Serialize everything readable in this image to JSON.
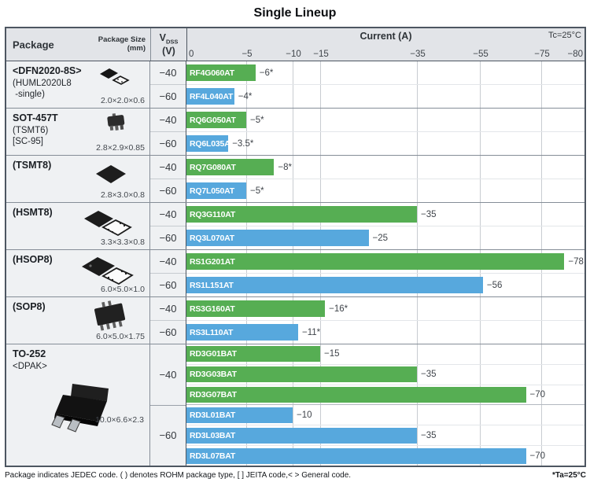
{
  "title": "Single Lineup",
  "header": {
    "package": "Package",
    "package_size_line1": "Package Size",
    "package_size_line2": "(mm)",
    "vdss_symbol": "V",
    "vdss_subscript": "DSS",
    "vdss_unit": "(V)",
    "current": "Current (A)",
    "tc": "Tc=25°C"
  },
  "footer": {
    "left": "Package indicates JEDEC code. ( ) denotes ROHM package type, [ ] JEITA code,< > General code.",
    "right": "*Ta=25°C"
  },
  "colors": {
    "green": "#56ae53",
    "blue": "#57a8dd",
    "header_bg": "#e2e4e8",
    "panel_bg": "#eff1f3",
    "border_dark": "#4d5661",
    "border_mid": "#858d97",
    "grid": "#c8ccd1"
  },
  "chart_data": {
    "type": "bar",
    "title": "Single Lineup",
    "xlabel": "Current (A)",
    "condition_top": "Tc=25°C",
    "condition_asterisk": "*Ta=25°C",
    "axis_scale": "nonlinear-compressed",
    "x_tick_labels": [
      "0",
      "−5",
      "−10",
      "−15",
      "−35",
      "−55",
      "−75",
      "−80"
    ],
    "x_tick_values": [
      0,
      5,
      10,
      15,
      35,
      55,
      75,
      80
    ],
    "legend": {
      "green_bars": "VDSS −40 V",
      "blue_bars": "VDSS −60 V"
    },
    "groups": [
      {
        "package": "<DFN2020-8S>",
        "package_sub": [
          "(HUML2020L8",
          " -single)"
        ],
        "package_size_mm": "2.0×2.0×0.6",
        "icon": "dfn-package-icon",
        "rows": [
          {
            "vdss": "−40",
            "bars": [
              {
                "part": "RF4G060AT",
                "current_a": -6,
                "label": "−6*",
                "color": "green"
              }
            ]
          },
          {
            "vdss": "−60",
            "bars": [
              {
                "part": "RF4L040AT",
                "current_a": -4,
                "label": "−4*",
                "color": "blue"
              }
            ]
          }
        ]
      },
      {
        "package": "SOT-457T",
        "package_sub": [
          "(TSMT6)",
          "[SC-95]"
        ],
        "package_size_mm": "2.8×2.9×0.85",
        "icon": "sot457t-package-icon",
        "rows": [
          {
            "vdss": "−40",
            "bars": [
              {
                "part": "RQ6G050AT",
                "current_a": -5,
                "label": "−5*",
                "color": "green"
              }
            ]
          },
          {
            "vdss": "−60",
            "bars": [
              {
                "part": "RQ6L035AT",
                "current_a": -3.5,
                "label": "−3.5*",
                "color": "blue"
              }
            ]
          }
        ]
      },
      {
        "package": "(TSMT8)",
        "package_sub": [],
        "package_size_mm": "2.8×3.0×0.8",
        "icon": "tsmt8-package-icon",
        "rows": [
          {
            "vdss": "−40",
            "bars": [
              {
                "part": "RQ7G080AT",
                "current_a": -8,
                "label": "−8*",
                "color": "green"
              }
            ]
          },
          {
            "vdss": "−60",
            "bars": [
              {
                "part": "RQ7L050AT",
                "current_a": -5,
                "label": "−5*",
                "color": "blue"
              }
            ]
          }
        ]
      },
      {
        "package": "(HSMT8)",
        "package_sub": [],
        "package_size_mm": "3.3×3.3×0.8",
        "icon": "hsmt8-package-icon",
        "rows": [
          {
            "vdss": "−40",
            "bars": [
              {
                "part": "RQ3G110AT",
                "current_a": -35,
                "label": "−35",
                "color": "green"
              }
            ]
          },
          {
            "vdss": "−60",
            "bars": [
              {
                "part": "RQ3L070AT",
                "current_a": -25,
                "label": "−25",
                "color": "blue"
              }
            ]
          }
        ]
      },
      {
        "package": "(HSOP8)",
        "package_sub": [],
        "package_size_mm": "6.0×5.0×1.0",
        "icon": "hsop8-package-icon",
        "rows": [
          {
            "vdss": "−40",
            "bars": [
              {
                "part": "RS1G201AT",
                "current_a": -78,
                "label": "−78",
                "color": "green"
              }
            ]
          },
          {
            "vdss": "−60",
            "bars": [
              {
                "part": "RS1L151AT",
                "current_a": -56,
                "label": "−56",
                "color": "blue"
              }
            ]
          }
        ]
      },
      {
        "package": "(SOP8)",
        "package_sub": [],
        "package_size_mm": "6.0×5.0×1.75",
        "icon": "sop8-package-icon",
        "rows": [
          {
            "vdss": "−40",
            "bars": [
              {
                "part": "RS3G160AT",
                "current_a": -16,
                "label": "−16*",
                "color": "green"
              }
            ]
          },
          {
            "vdss": "−60",
            "bars": [
              {
                "part": "RS3L110AT",
                "current_a": -11,
                "label": "−11*",
                "color": "blue"
              }
            ]
          }
        ]
      },
      {
        "package": "TO-252",
        "package_sub": [
          "<DPAK>"
        ],
        "package_size_mm": "10.0×6.6×2.3",
        "icon": "to252-package-icon",
        "rows": [
          {
            "vdss": "−40",
            "bars": [
              {
                "part": "RD3G01BAT",
                "current_a": -15,
                "label": "−15",
                "color": "green"
              },
              {
                "part": "RD3G03BAT",
                "current_a": -35,
                "label": "−35",
                "color": "green"
              },
              {
                "part": "RD3G07BAT",
                "current_a": -70,
                "label": "−70",
                "color": "green"
              }
            ]
          },
          {
            "vdss": "−60",
            "bars": [
              {
                "part": "RD3L01BAT",
                "current_a": -10,
                "label": "−10",
                "color": "blue"
              },
              {
                "part": "RD3L03BAT",
                "current_a": -35,
                "label": "−35",
                "color": "blue"
              },
              {
                "part": "RD3L07BAT",
                "current_a": -70,
                "label": "−70",
                "color": "blue"
              }
            ]
          }
        ]
      }
    ]
  }
}
